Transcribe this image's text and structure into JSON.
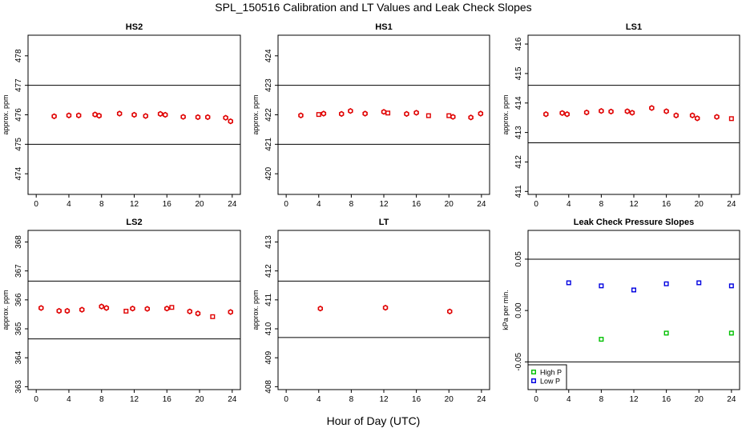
{
  "figure": {
    "title": "SPL_150516  Calibration and LT Values and Leak Check Slopes",
    "xlabel": "Hour of Day (UTC)"
  },
  "chart_data": [
    {
      "type": "scatter",
      "title": "HS2",
      "ylabel": "approx. ppm",
      "xlim": [
        -1,
        25
      ],
      "ylim": [
        473.3,
        478.7
      ],
      "xticks": [
        0,
        4,
        8,
        12,
        16,
        20,
        24
      ],
      "yticks": [
        474,
        475,
        476,
        477,
        478
      ],
      "hlines": [
        475,
        477
      ],
      "series": [
        {
          "marker": "hex",
          "color": "#e00000",
          "x": [
            2.2,
            4,
            5.2,
            7.2,
            7.7,
            10.2,
            12,
            13.4,
            15.2,
            15.8,
            18,
            19.8,
            21,
            23.2,
            23.8
          ],
          "y": [
            475.95,
            475.98,
            475.98,
            476.01,
            475.97,
            476.04,
            476.0,
            475.96,
            476.03,
            476.0,
            475.93,
            475.92,
            475.92,
            475.9,
            475.78
          ]
        },
        {
          "marker": "square",
          "color": "#e00000",
          "x": [],
          "y": []
        }
      ]
    },
    {
      "type": "scatter",
      "title": "HS1",
      "ylabel": "approx. ppm",
      "xlim": [
        -1,
        25
      ],
      "ylim": [
        419.3,
        424.7
      ],
      "xticks": [
        0,
        4,
        8,
        12,
        16,
        20,
        24
      ],
      "yticks": [
        420,
        421,
        422,
        423,
        424
      ],
      "hlines": [
        421,
        423
      ],
      "series": [
        {
          "marker": "hex",
          "color": "#e00000",
          "x": [
            1.8,
            4.6,
            6.8,
            7.9,
            9.7,
            12,
            14.8,
            16,
            20.5,
            22.7,
            23.9
          ],
          "y": [
            421.98,
            422.04,
            422.03,
            422.13,
            422.04,
            422.1,
            422.03,
            422.07,
            421.93,
            421.91,
            422.04
          ]
        },
        {
          "marker": "square",
          "color": "#e00000",
          "x": [
            4,
            12.5,
            17.5,
            20
          ],
          "y": [
            422.01,
            422.06,
            421.97,
            421.97
          ]
        }
      ]
    },
    {
      "type": "scatter",
      "title": "LS1",
      "ylabel": "approx. ppm",
      "xlim": [
        -1,
        25
      ],
      "ylim": [
        410.9,
        416.3
      ],
      "xticks": [
        0,
        4,
        8,
        12,
        16,
        20,
        24
      ],
      "yticks": [
        411,
        412,
        413,
        414,
        415,
        416
      ],
      "hlines": [
        412.65,
        414.6
      ],
      "series": [
        {
          "marker": "hex",
          "color": "#e00000",
          "x": [
            1.2,
            3.2,
            3.8,
            6.2,
            8,
            9.2,
            11.2,
            11.8,
            14.2,
            16,
            17.2,
            19.2,
            19.8,
            22.2
          ],
          "y": [
            413.62,
            413.66,
            413.62,
            413.68,
            413.73,
            413.71,
            413.72,
            413.67,
            413.83,
            413.72,
            413.58,
            413.58,
            413.48,
            413.53
          ]
        },
        {
          "marker": "square",
          "color": "#e00000",
          "x": [
            24
          ],
          "y": [
            413.47
          ]
        }
      ]
    },
    {
      "type": "scatter",
      "title": "LS2",
      "ylabel": "approx. ppm",
      "xlim": [
        -1,
        25
      ],
      "ylim": [
        362.9,
        368.4
      ],
      "xticks": [
        0,
        4,
        8,
        12,
        16,
        20,
        24
      ],
      "yticks": [
        363,
        364,
        365,
        366,
        367,
        368
      ],
      "hlines": [
        364.65,
        366.65
      ],
      "series": [
        {
          "marker": "hex",
          "color": "#e00000",
          "x": [
            0.6,
            2.8,
            3.8,
            5.6,
            8,
            8.6,
            11.8,
            13.6,
            16,
            18.8,
            19.8,
            23.8
          ],
          "y": [
            365.72,
            365.62,
            365.62,
            365.66,
            365.77,
            365.72,
            365.7,
            365.69,
            365.7,
            365.6,
            365.53,
            365.58
          ]
        },
        {
          "marker": "square",
          "color": "#e00000",
          "x": [
            11,
            16.6,
            21.6
          ],
          "y": [
            365.61,
            365.74,
            365.42
          ]
        }
      ]
    },
    {
      "type": "scatter",
      "title": "LT",
      "ylabel": "approx. ppm",
      "xlim": [
        -1,
        25
      ],
      "ylim": [
        407.9,
        413.4
      ],
      "xticks": [
        0,
        4,
        8,
        12,
        16,
        20,
        24
      ],
      "yticks": [
        408,
        409,
        410,
        411,
        412,
        413
      ],
      "hlines": [
        409.7,
        411.65
      ],
      "series": [
        {
          "marker": "hex",
          "color": "#e00000",
          "x": [
            4.2,
            12.2,
            20.1
          ],
          "y": [
            410.7,
            410.73,
            410.6
          ]
        }
      ]
    },
    {
      "type": "scatter",
      "title": "Leak Check Pressure Slopes",
      "ylabel": "kPa per min.",
      "xlim": [
        -1,
        25
      ],
      "ylim": [
        -0.077,
        0.078
      ],
      "xticks": [
        0,
        4,
        8,
        12,
        16,
        20,
        24
      ],
      "yticks": [
        -0.05,
        0.0,
        0.05
      ],
      "ytick_labels": [
        "-0.05",
        "0.00",
        "0.05"
      ],
      "hlines": [
        -0.05,
        0.05
      ],
      "legend": {
        "placement": "bottom-left"
      },
      "series": [
        {
          "name": "High P",
          "marker": "square",
          "color": "#00c000",
          "x": [
            8,
            16,
            24
          ],
          "y": [
            -0.028,
            -0.022,
            -0.022
          ]
        },
        {
          "name": "Low P",
          "marker": "square",
          "color": "#0000e0",
          "x": [
            4,
            8,
            12,
            16,
            20,
            24
          ],
          "y": [
            0.027,
            0.024,
            0.02,
            0.026,
            0.027,
            0.024
          ]
        }
      ]
    }
  ]
}
